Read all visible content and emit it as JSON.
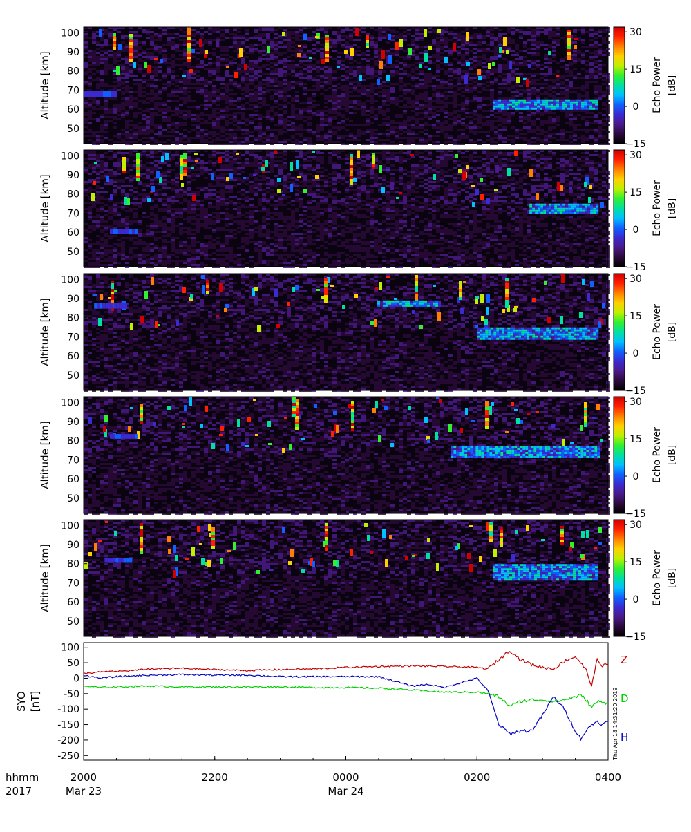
{
  "figure": {
    "time_label": "hhmm",
    "year_label": "2017",
    "stamp": "Thu Apr 18 14:31:20 2019"
  },
  "colorbar": {
    "label_line1": "Echo Power",
    "label_line2": "[dB]",
    "ticks": [
      "30",
      "15",
      "0",
      "−15"
    ],
    "range": [
      -15,
      32
    ],
    "colormap": [
      "#000000",
      "#2a0a3a",
      "#4a1a8a",
      "#3a2ad0",
      "#1060ff",
      "#00c0ff",
      "#00e0a0",
      "#30f030",
      "#c0f000",
      "#ffd000",
      "#ff8000",
      "#ff2000",
      "#d00000"
    ]
  },
  "chart_data": [
    {
      "type": "heatmap",
      "panel": 1,
      "ylabel": "Altitude [km]",
      "y_ticks": [
        "100",
        "90",
        "80",
        "70",
        "60",
        "50"
      ],
      "y_range": [
        42,
        103
      ],
      "x_ticks": [
        "2000",
        "2200",
        "0000",
        "0200",
        "0400"
      ],
      "z_label": "Echo Power [dB]",
      "z_range": [
        -15,
        32
      ]
    },
    {
      "type": "heatmap",
      "panel": 2,
      "ylabel": "Altitude [km]",
      "y_ticks": [
        "100",
        "90",
        "80",
        "70",
        "60",
        "50"
      ],
      "y_range": [
        42,
        103
      ],
      "x_ticks": [
        "2000",
        "2200",
        "0000",
        "0200",
        "0400"
      ],
      "z_label": "Echo Power [dB]",
      "z_range": [
        -15,
        32
      ]
    },
    {
      "type": "heatmap",
      "panel": 3,
      "ylabel": "Altitude [km]",
      "y_ticks": [
        "100",
        "90",
        "80",
        "70",
        "60",
        "50"
      ],
      "y_range": [
        42,
        103
      ],
      "x_ticks": [
        "2000",
        "2200",
        "0000",
        "0200",
        "0400"
      ],
      "z_label": "Echo Power [dB]",
      "z_range": [
        -15,
        32
      ]
    },
    {
      "type": "heatmap",
      "panel": 4,
      "ylabel": "Altitude [km]",
      "y_ticks": [
        "100",
        "90",
        "80",
        "70",
        "60",
        "50"
      ],
      "y_range": [
        42,
        103
      ],
      "x_ticks": [
        "2000",
        "2200",
        "0000",
        "0200",
        "0400"
      ],
      "z_label": "Echo Power [dB]",
      "z_range": [
        -15,
        32
      ]
    },
    {
      "type": "heatmap",
      "panel": 5,
      "ylabel": "Altitude [km]",
      "y_ticks": [
        "100",
        "90",
        "80",
        "70",
        "60",
        "50"
      ],
      "y_range": [
        42,
        103
      ],
      "x_ticks": [
        "2000",
        "2200",
        "0000",
        "0200",
        "0400"
      ],
      "z_label": "Echo Power [dB]",
      "z_range": [
        -15,
        32
      ]
    },
    {
      "type": "line",
      "ylabel_line1": "SYO",
      "ylabel_line2": "[nT]",
      "y_ticks": [
        100,
        50,
        0,
        -50,
        -100,
        -150,
        -200,
        -250
      ],
      "ylim": [
        -265,
        115
      ],
      "x_ticks": [
        "2000",
        "2200",
        "0000",
        "0200",
        "0400"
      ],
      "x_dates": [
        "Mar 23",
        "",
        "Mar 24",
        "",
        ""
      ],
      "x_range_hours": [
        20,
        28
      ],
      "series": [
        {
          "name": "Z",
          "color": "#c00000",
          "x": [
            "20:00",
            "20:15",
            "20:30",
            "20:45",
            "21:00",
            "21:30",
            "22:00",
            "22:30",
            "23:00",
            "23:30",
            "00:00",
            "00:30",
            "01:00",
            "01:30",
            "02:00",
            "02:10",
            "02:20",
            "02:30",
            "02:40",
            "02:50",
            "03:00",
            "03:10",
            "03:20",
            "03:30",
            "03:35",
            "03:40",
            "03:45",
            "03:50",
            "03:55",
            "04:00"
          ],
          "values": [
            15,
            20,
            22,
            25,
            30,
            32,
            28,
            25,
            28,
            30,
            35,
            38,
            40,
            38,
            35,
            30,
            60,
            90,
            60,
            45,
            35,
            30,
            55,
            70,
            50,
            25,
            -25,
            60,
            40,
            45
          ]
        },
        {
          "name": "D",
          "color": "#00d000",
          "x": [
            "20:00",
            "20:15",
            "20:30",
            "21:00",
            "21:30",
            "22:00",
            "22:30",
            "23:00",
            "23:30",
            "00:00",
            "00:30",
            "01:00",
            "01:30",
            "02:00",
            "02:10",
            "02:20",
            "02:30",
            "02:40",
            "02:50",
            "03:00",
            "03:10",
            "03:20",
            "03:30",
            "03:35",
            "03:40",
            "03:45",
            "03:50",
            "03:55",
            "04:00"
          ],
          "values": [
            -25,
            -30,
            -28,
            -25,
            -28,
            -28,
            -28,
            -28,
            -30,
            -30,
            -32,
            -38,
            -45,
            -45,
            -50,
            -60,
            -90,
            -75,
            -70,
            -70,
            -75,
            -70,
            -60,
            -55,
            -70,
            -95,
            -75,
            -80,
            -80
          ]
        },
        {
          "name": "H",
          "color": "#0000c0",
          "x": [
            "20:00",
            "20:15",
            "20:30",
            "21:00",
            "21:30",
            "22:00",
            "22:30",
            "23:00",
            "23:30",
            "00:00",
            "00:30",
            "00:45",
            "01:00",
            "01:15",
            "01:30",
            "01:45",
            "02:00",
            "02:10",
            "02:20",
            "02:30",
            "02:40",
            "02:50",
            "03:00",
            "03:10",
            "03:20",
            "03:30",
            "03:35",
            "03:40",
            "03:45",
            "03:50",
            "03:55",
            "04:00"
          ],
          "values": [
            10,
            0,
            5,
            10,
            12,
            10,
            10,
            5,
            5,
            5,
            5,
            -10,
            -25,
            -20,
            -30,
            -15,
            0,
            -40,
            -150,
            -180,
            -170,
            -170,
            -120,
            -60,
            -100,
            -170,
            -195,
            -170,
            -150,
            -140,
            -150,
            -140
          ]
        }
      ]
    }
  ]
}
